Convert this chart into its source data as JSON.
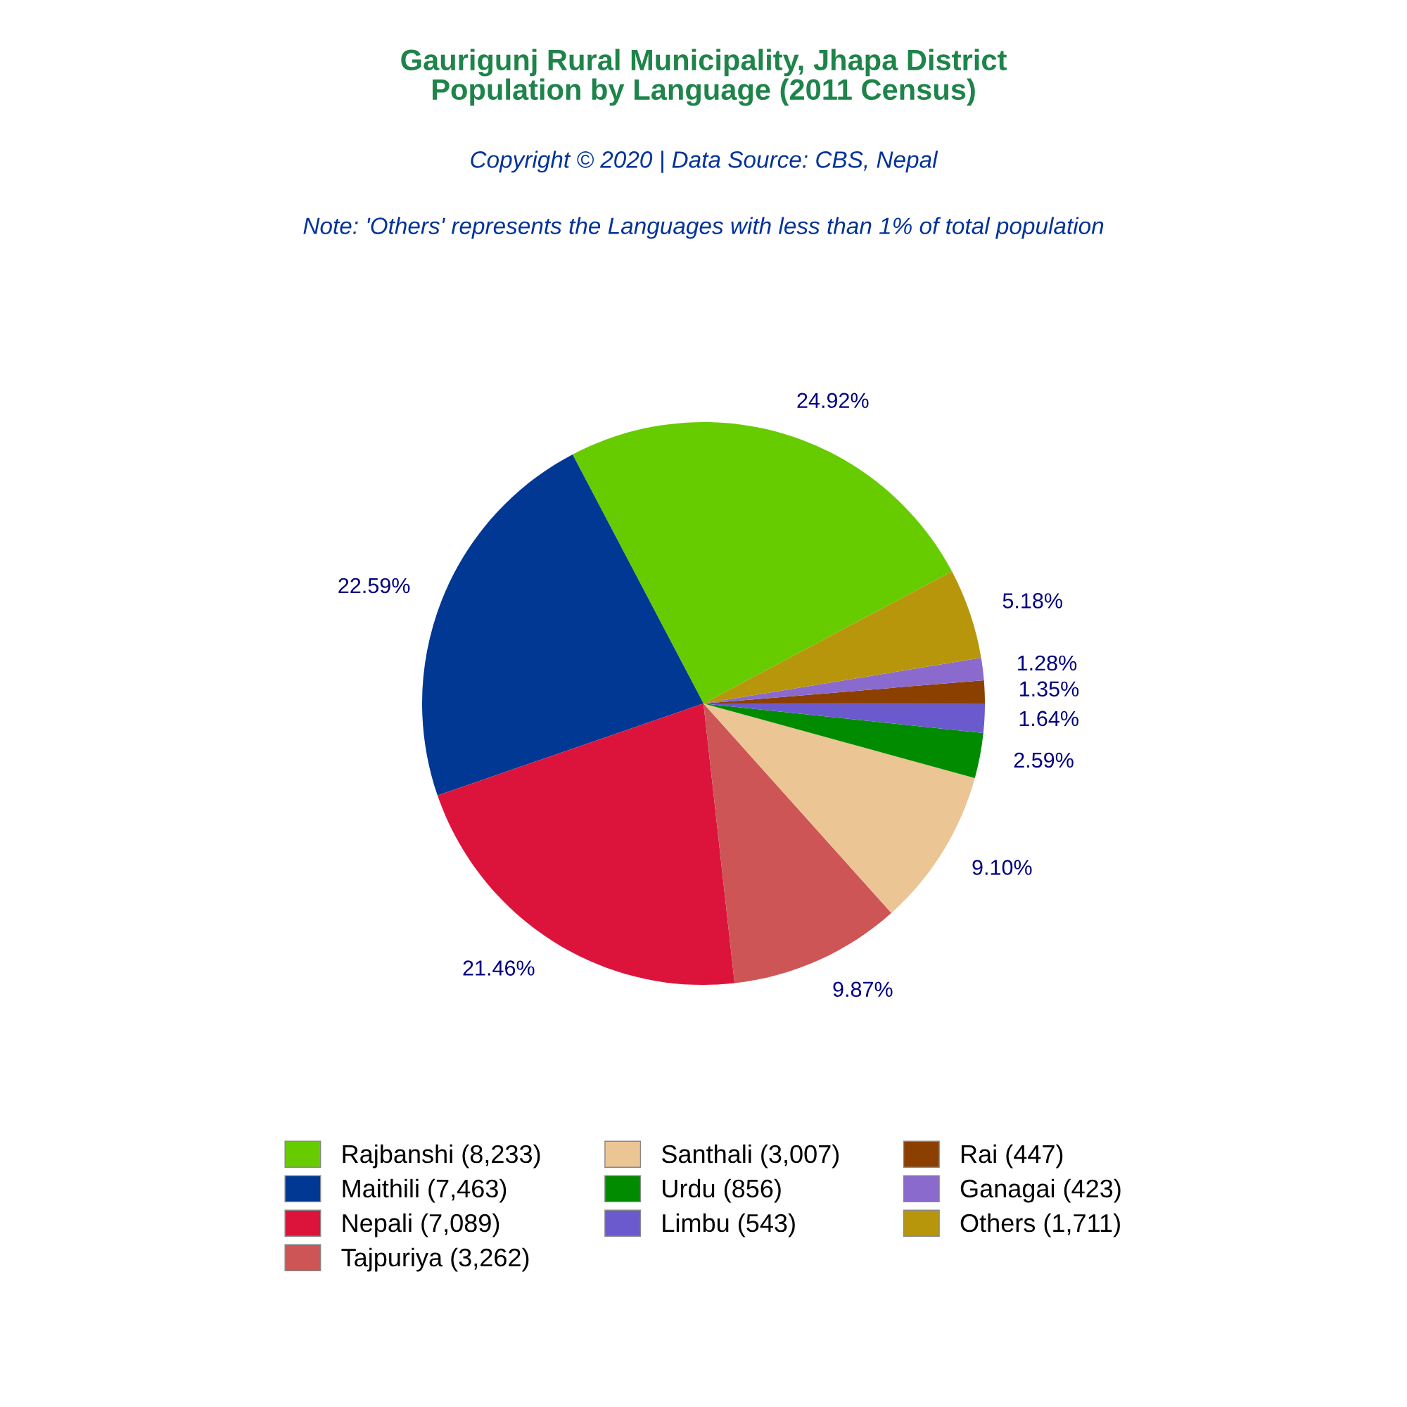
{
  "chart_data": {
    "type": "pie",
    "title": "Gaurigunj Rural Municipality, Jhapa District\nPopulation by Language (2011 Census)",
    "subtitle": "Copyright © 2020 | Data Source: CBS, Nepal",
    "annotations": [
      "Note: 'Others' represents the Languages with less than 1% of total population"
    ],
    "categories": [
      "Rajbanshi (8,233)",
      "Maithili (7,463)",
      "Nepali (7,089)",
      "Tajpuriya (3,262)",
      "Santhali (3,007)",
      "Urdu (856)",
      "Limbu (543)",
      "Rai (447)",
      "Ganagai (423)",
      "Others (1,711)"
    ],
    "values": [
      24.92,
      22.59,
      21.46,
      9.87,
      9.1,
      2.59,
      1.64,
      1.35,
      1.28,
      5.18
    ],
    "value_labels": [
      "24.92%",
      "22.59%",
      "21.46%",
      "9.87%",
      "9.10%",
      "2.59%",
      "1.64%",
      "1.35%",
      "1.28%",
      "5.18%"
    ],
    "colors": [
      "#66cc00",
      "#003893",
      "#dc143c",
      "#cd5555",
      "#ecc594",
      "#008b00",
      "#6a5acd",
      "#8b4000",
      "#8a6acd",
      "#b8960c"
    ],
    "legend": "bottom"
  }
}
